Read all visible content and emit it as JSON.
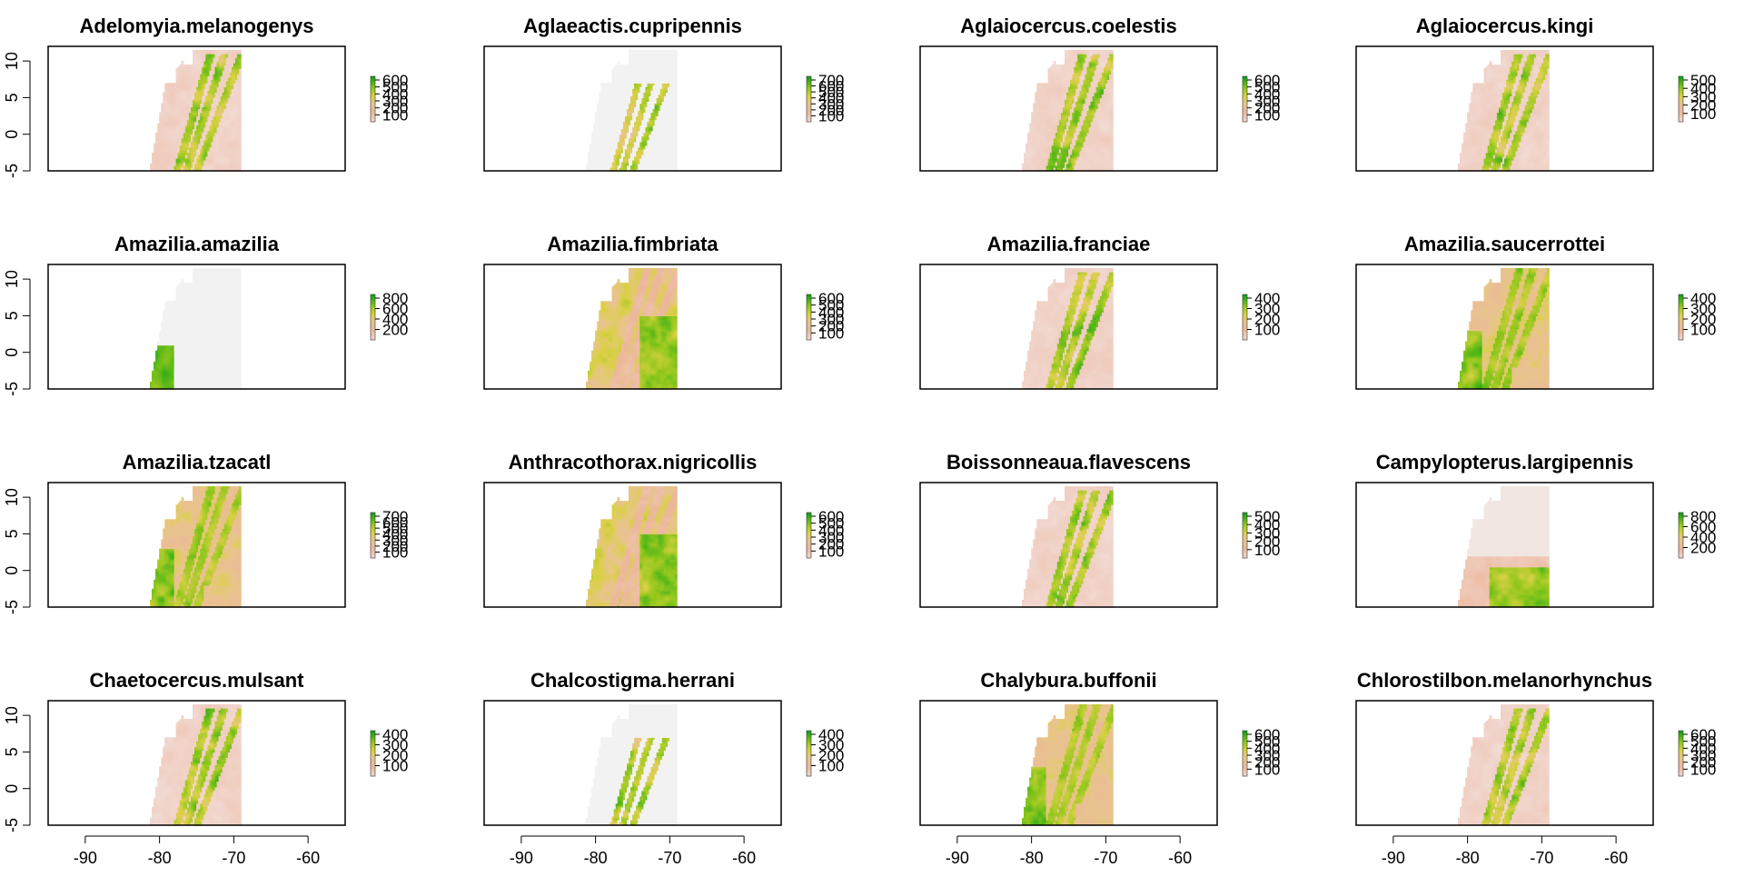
{
  "figure": {
    "background": "#ffffff",
    "nrows": 4,
    "ncols": 4
  },
  "chart_data": [
    {
      "type": "heatmap",
      "title": "Adelomyia.melanogenys",
      "map_mode": "andes",
      "xlim": [
        -95,
        -55
      ],
      "ylim": [
        -5,
        12
      ],
      "xticks": [
        -90,
        -80,
        -70,
        -60
      ],
      "yticks": [
        -5,
        0,
        5,
        10
      ],
      "legend_ticks": [
        100,
        200,
        300,
        400,
        500,
        600
      ]
    },
    {
      "type": "heatmap",
      "title": "Aglaeactis.cupripennis",
      "map_mode": "sparse",
      "xlim": [
        -95,
        -55
      ],
      "ylim": [
        -5,
        12
      ],
      "xticks": [
        -90,
        -80,
        -70,
        -60
      ],
      "yticks": [
        -5,
        0,
        5,
        10
      ],
      "legend_ticks": [
        100,
        200,
        300,
        400,
        500,
        600,
        700
      ]
    },
    {
      "type": "heatmap",
      "title": "Aglaiocercus.coelestis",
      "map_mode": "andes",
      "xlim": [
        -95,
        -55
      ],
      "ylim": [
        -5,
        12
      ],
      "xticks": [
        -90,
        -80,
        -70,
        -60
      ],
      "yticks": [
        -5,
        0,
        5,
        10
      ],
      "legend_ticks": [
        100,
        200,
        300,
        400,
        500,
        600
      ]
    },
    {
      "type": "heatmap",
      "title": "Aglaiocercus.kingi",
      "map_mode": "andes",
      "xlim": [
        -95,
        -55
      ],
      "ylim": [
        -5,
        12
      ],
      "xticks": [
        -90,
        -80,
        -70,
        -60
      ],
      "yticks": [
        -5,
        0,
        5,
        10
      ],
      "legend_ticks": [
        100,
        200,
        300,
        400,
        500
      ]
    },
    {
      "type": "heatmap",
      "title": "Amazilia.amazilia",
      "map_mode": "coast",
      "xlim": [
        -95,
        -55
      ],
      "ylim": [
        -5,
        12
      ],
      "xticks": [
        -90,
        -80,
        -70,
        -60
      ],
      "yticks": [
        -5,
        0,
        5,
        10
      ],
      "legend_ticks": [
        200,
        400,
        600,
        800
      ]
    },
    {
      "type": "heatmap",
      "title": "Amazilia.fimbriata",
      "map_mode": "lowland",
      "xlim": [
        -95,
        -55
      ],
      "ylim": [
        -5,
        12
      ],
      "xticks": [
        -90,
        -80,
        -70,
        -60
      ],
      "yticks": [
        -5,
        0,
        5,
        10
      ],
      "legend_ticks": [
        100,
        200,
        300,
        400,
        500,
        600
      ]
    },
    {
      "type": "heatmap",
      "title": "Amazilia.franciae",
      "map_mode": "andes",
      "xlim": [
        -95,
        -55
      ],
      "ylim": [
        -5,
        12
      ],
      "xticks": [
        -90,
        -80,
        -70,
        -60
      ],
      "yticks": [
        -5,
        0,
        5,
        10
      ],
      "legend_ticks": [
        100,
        200,
        300,
        400
      ]
    },
    {
      "type": "heatmap",
      "title": "Amazilia.saucerrottei",
      "map_mode": "mixed",
      "xlim": [
        -95,
        -55
      ],
      "ylim": [
        -5,
        12
      ],
      "xticks": [
        -90,
        -80,
        -70,
        -60
      ],
      "yticks": [
        -5,
        0,
        5,
        10
      ],
      "legend_ticks": [
        100,
        200,
        300,
        400
      ]
    },
    {
      "type": "heatmap",
      "title": "Amazilia.tzacatl",
      "map_mode": "mixed",
      "xlim": [
        -95,
        -55
      ],
      "ylim": [
        -5,
        12
      ],
      "xticks": [
        -90,
        -80,
        -70,
        -60
      ],
      "yticks": [
        -5,
        0,
        5,
        10
      ],
      "legend_ticks": [
        100,
        200,
        300,
        400,
        500,
        600,
        700
      ]
    },
    {
      "type": "heatmap",
      "title": "Anthracothorax.nigricollis",
      "map_mode": "lowland",
      "xlim": [
        -95,
        -55
      ],
      "ylim": [
        -5,
        12
      ],
      "xticks": [
        -90,
        -80,
        -70,
        -60
      ],
      "yticks": [
        -5,
        0,
        5,
        10
      ],
      "legend_ticks": [
        100,
        200,
        300,
        400,
        500,
        600
      ]
    },
    {
      "type": "heatmap",
      "title": "Boissonneaua.flavescens",
      "map_mode": "andes",
      "xlim": [
        -95,
        -55
      ],
      "ylim": [
        -5,
        12
      ],
      "xticks": [
        -90,
        -80,
        -70,
        -60
      ],
      "yticks": [
        -5,
        0,
        5,
        10
      ],
      "legend_ticks": [
        100,
        200,
        300,
        400,
        500
      ]
    },
    {
      "type": "heatmap",
      "title": "Campylopterus.largipennis",
      "map_mode": "amazon",
      "xlim": [
        -95,
        -55
      ],
      "ylim": [
        -5,
        12
      ],
      "xticks": [
        -90,
        -80,
        -70,
        -60
      ],
      "yticks": [
        -5,
        0,
        5,
        10
      ],
      "legend_ticks": [
        200,
        400,
        600,
        800
      ]
    },
    {
      "type": "heatmap",
      "title": "Chaetocercus.mulsant",
      "map_mode": "andes",
      "xlim": [
        -95,
        -55
      ],
      "ylim": [
        -5,
        12
      ],
      "xticks": [
        -90,
        -80,
        -70,
        -60
      ],
      "yticks": [
        -5,
        0,
        5,
        10
      ],
      "legend_ticks": [
        100,
        200,
        300,
        400
      ]
    },
    {
      "type": "heatmap",
      "title": "Chalcostigma.herrani",
      "map_mode": "sparse",
      "xlim": [
        -95,
        -55
      ],
      "ylim": [
        -5,
        12
      ],
      "xticks": [
        -90,
        -80,
        -70,
        -60
      ],
      "yticks": [
        -5,
        0,
        5,
        10
      ],
      "legend_ticks": [
        100,
        200,
        300,
        400
      ]
    },
    {
      "type": "heatmap",
      "title": "Chalybura.buffonii",
      "map_mode": "mixed",
      "xlim": [
        -95,
        -55
      ],
      "ylim": [
        -5,
        12
      ],
      "xticks": [
        -90,
        -80,
        -70,
        -60
      ],
      "yticks": [
        -5,
        0,
        5,
        10
      ],
      "legend_ticks": [
        100,
        200,
        300,
        400,
        500,
        600
      ]
    },
    {
      "type": "heatmap",
      "title": "Chlorostilbon.melanorhynchus",
      "map_mode": "andes",
      "xlim": [
        -95,
        -55
      ],
      "ylim": [
        -5,
        12
      ],
      "xticks": [
        -90,
        -80,
        -70,
        -60
      ],
      "yticks": [
        -5,
        0,
        5,
        10
      ],
      "legend_ticks": [
        100,
        200,
        300,
        400,
        500,
        600
      ]
    }
  ]
}
